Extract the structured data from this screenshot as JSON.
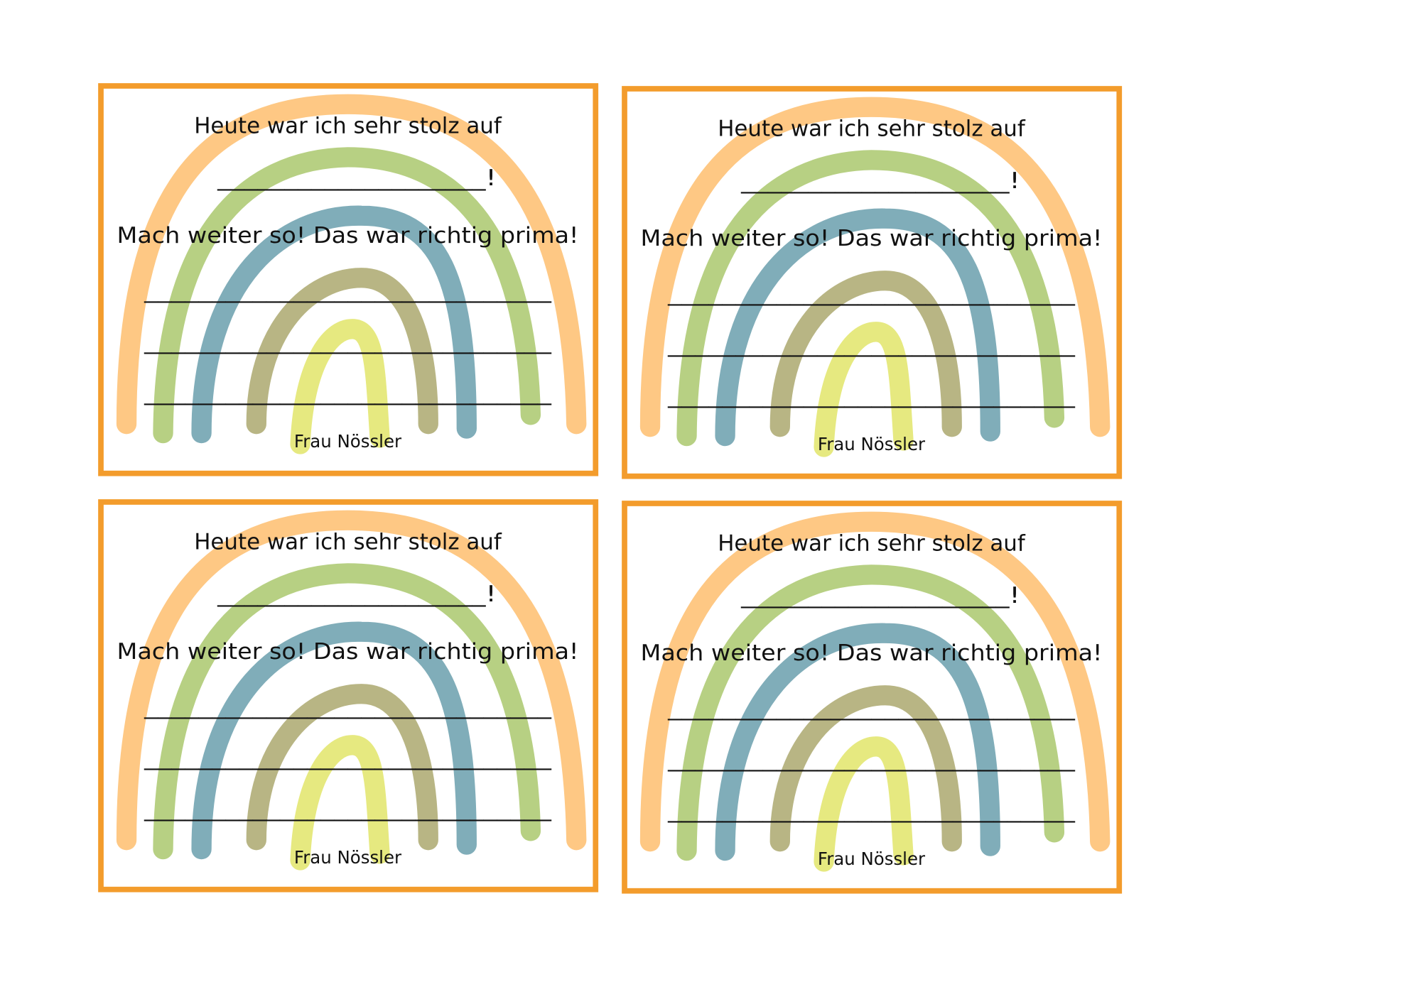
{
  "cards": [
    {
      "heading": "Heute war ich sehr stolz auf",
      "blank": "____________________!",
      "praise": "Mach weiter so! Das war richtig prima!",
      "lines": [
        "______________________________",
        "______________________________",
        "______________________________"
      ],
      "signature": "Frau Nössler"
    },
    {
      "heading": "Heute war ich sehr stolz auf",
      "blank": "____________________!",
      "praise": "Mach weiter so! Das war richtig prima!",
      "lines": [
        "______________________________",
        "______________________________",
        "______________________________"
      ],
      "signature": "Frau Nössler"
    },
    {
      "heading": "Heute war ich sehr stolz auf",
      "blank": "____________________!",
      "praise": "Mach weiter so! Das war richtig prima!",
      "lines": [
        "______________________________",
        "______________________________",
        "______________________________"
      ],
      "signature": "Frau Nössler"
    },
    {
      "heading": "Heute war ich sehr stolz auf",
      "blank": "____________________!",
      "praise": "Mach weiter so! Das war richtig prima!",
      "lines": [
        "______________________________",
        "______________________________",
        "______________________________"
      ],
      "signature": "Frau Nössler"
    }
  ]
}
